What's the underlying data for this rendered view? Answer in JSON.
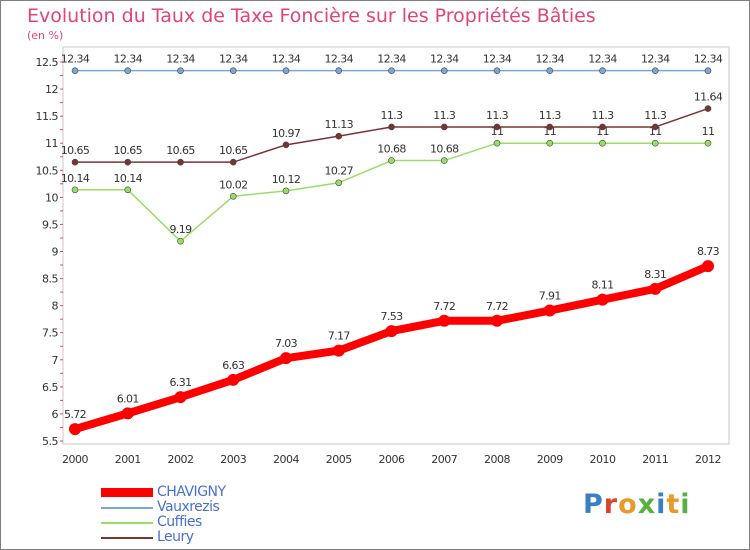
{
  "chart_data": {
    "type": "line",
    "title": "Evolution du Taux de Taxe Foncière sur les Propriétés Bâties",
    "unit_label": "(en %)",
    "xlabel": "",
    "ylabel": "",
    "x": [
      "2000",
      "2001",
      "2002",
      "2003",
      "2004",
      "2005",
      "2006",
      "2007",
      "2008",
      "2009",
      "2010",
      "2011",
      "2012"
    ],
    "ylim": [
      5.5,
      12.5
    ],
    "yticks": [
      "5.5",
      "6",
      "6.5",
      "7",
      "7.5",
      "8",
      "8.5",
      "9",
      "9.5",
      "10",
      "10.5",
      "11",
      "11.5",
      "12",
      "12.5"
    ],
    "series": [
      {
        "name": "CHAVIGNY",
        "color": "#ff0000",
        "values": [
          5.72,
          6.01,
          6.31,
          6.63,
          7.03,
          7.17,
          7.53,
          7.72,
          7.72,
          7.91,
          8.11,
          8.31,
          8.73
        ],
        "labels": [
          "5.72",
          "6.01",
          "6.31",
          "6.63",
          "7.03",
          "7.17",
          "7.53",
          "7.72",
          "7.72",
          "7.91",
          "8.11",
          "8.31",
          "8.73"
        ]
      },
      {
        "name": "Vauxrezis",
        "color": "#7ba7d4",
        "values": [
          12.34,
          12.34,
          12.34,
          12.34,
          12.34,
          12.34,
          12.34,
          12.34,
          12.34,
          12.34,
          12.34,
          12.34,
          12.34
        ],
        "labels": [
          "12.34",
          "12.34",
          "12.34",
          "12.34",
          "12.34",
          "12.34",
          "12.34",
          "12.34",
          "12.34",
          "12.34",
          "12.34",
          "12.34",
          "12.34"
        ]
      },
      {
        "name": "Cuffies",
        "color": "#99dd66",
        "values": [
          10.14,
          10.14,
          9.19,
          10.02,
          10.12,
          10.27,
          10.68,
          10.68,
          11,
          11,
          11,
          11,
          11
        ],
        "labels": [
          "10.14",
          "10.14",
          "9.19",
          "10.02",
          "10.12",
          "10.27",
          "10.68",
          "10.68",
          "11",
          "11",
          "11",
          "11",
          "11"
        ]
      },
      {
        "name": "Leury",
        "color": "#7a3333",
        "values": [
          10.65,
          10.65,
          10.65,
          10.65,
          10.97,
          11.13,
          11.3,
          11.3,
          11.3,
          11.3,
          11.3,
          11.3,
          11.64
        ],
        "labels": [
          "10.65",
          "10.65",
          "10.65",
          "10.65",
          "10.97",
          "11.13",
          "11.3",
          "11.3",
          "11.3",
          "11.3",
          "11.3",
          "11.3",
          "11.64"
        ]
      }
    ],
    "legend_position": "bottom-left"
  },
  "logo": {
    "letters": [
      "P",
      "r",
      "o",
      "x",
      "i",
      "t",
      "i"
    ]
  }
}
